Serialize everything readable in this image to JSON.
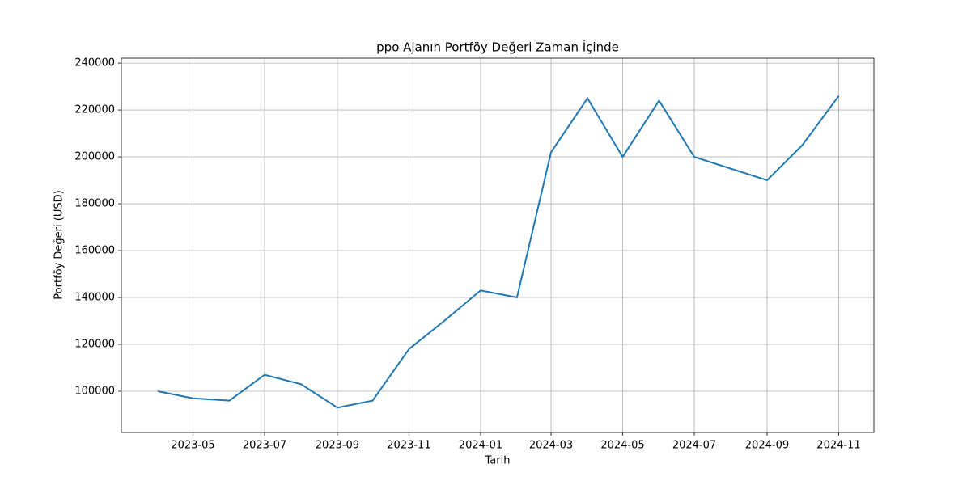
{
  "chart_data": {
    "type": "line",
    "title": "ppo Ajanın Portföy Değeri Zaman İçinde",
    "x_label": "Tarih",
    "y_label": "Portföy Değeri (USD)",
    "x": [
      "2023-04",
      "2023-05",
      "2023-06",
      "2023-07",
      "2023-08",
      "2023-09",
      "2023-10",
      "2023-11",
      "2023-12",
      "2024-01",
      "2024-02",
      "2024-03",
      "2024-04",
      "2024-05",
      "2024-06",
      "2024-07",
      "2024-08",
      "2024-09",
      "2024-10",
      "2024-11"
    ],
    "values": [
      100000,
      97000,
      96000,
      107000,
      103000,
      93000,
      96000,
      118000,
      130000,
      143000,
      140000,
      202000,
      225000,
      200000,
      224000,
      200000,
      195000,
      190000,
      205000,
      226000
    ],
    "color": "#1f77b4",
    "xlim": [
      "2023-03",
      "2024-12"
    ],
    "xticks": [
      "2023-05",
      "2023-07",
      "2023-09",
      "2023-11",
      "2024-01",
      "2024-03",
      "2024-05",
      "2024-07",
      "2024-09",
      "2024-11"
    ],
    "ylim": [
      82400,
      242100
    ],
    "yticks": [
      100000,
      120000,
      140000,
      160000,
      180000,
      200000,
      220000,
      240000
    ],
    "grid": true
  }
}
